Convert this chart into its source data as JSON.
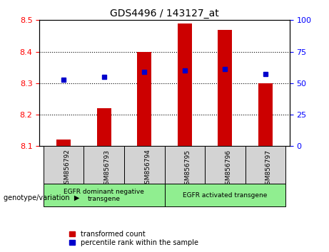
{
  "title": "GDS4496 / 143127_at",
  "samples": [
    "GSM856792",
    "GSM856793",
    "GSM856794",
    "GSM856795",
    "GSM856796",
    "GSM856797"
  ],
  "red_bar_tops": [
    8.12,
    8.22,
    8.4,
    8.49,
    8.47,
    8.3
  ],
  "blue_y": [
    8.31,
    8.32,
    8.335,
    8.34,
    8.345,
    8.33
  ],
  "bar_bottom": 8.1,
  "ylim_left": [
    8.1,
    8.5
  ],
  "ylim_right": [
    0,
    100
  ],
  "yticks_left": [
    8.1,
    8.2,
    8.3,
    8.4,
    8.5
  ],
  "yticks_right": [
    0,
    25,
    50,
    75,
    100
  ],
  "bar_color": "#CC0000",
  "blue_color": "#0000CC",
  "xlabel_label": "genotype/variation",
  "legend1": "transformed count",
  "legend2": "percentile rank within the sample",
  "plot_bg": "#ffffff",
  "bar_width": 0.35,
  "group1_label": "EGFR dominant negative\ntransgene",
  "group2_label": "EGFR activated transgene",
  "green": "#90EE90",
  "gray": "#d3d3d3"
}
